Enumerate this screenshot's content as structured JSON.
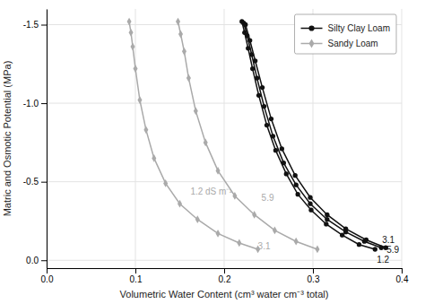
{
  "chart_data": {
    "type": "line",
    "xlabel": "Volumetric Water Content (cm³ water cm⁻³ total)",
    "ylabel": "Matric and Osmotic Potential (MPa)",
    "xlim": [
      0.0,
      0.4
    ],
    "ylim": [
      0.05,
      -1.6
    ],
    "xticks": [
      {
        "value": 0.0,
        "label": "0.0"
      },
      0.1,
      0.2,
      0.3,
      0.4
    ],
    "yticks": [
      -1.5,
      {
        "value": -1.0,
        "label": "-1.0"
      },
      -0.5,
      {
        "value": 0.0,
        "label": "0.0"
      }
    ],
    "grid": true,
    "legend": "upper right",
    "series": [
      {
        "name": "Silty Clay Loam",
        "color": "#111111",
        "marker": "circle",
        "line_style": "solid",
        "x": [
          0.22,
          0.223,
          0.227,
          0.232,
          0.239,
          0.248,
          0.258,
          0.27,
          0.283,
          0.298,
          0.315,
          0.333,
          0.352,
          0.37
        ],
        "values": [
          -1.52,
          -1.45,
          -1.35,
          -1.22,
          -1.05,
          -0.86,
          -0.7,
          -0.55,
          -0.42,
          -0.32,
          -0.23,
          -0.16,
          -0.1,
          -0.07
        ]
      },
      {
        "color": "#111111",
        "marker": "circle",
        "line_style": "solid",
        "x": [
          0.222,
          0.226,
          0.231,
          0.237,
          0.245,
          0.255,
          0.267,
          0.281,
          0.297,
          0.316,
          0.337,
          0.358,
          0.377
        ],
        "values": [
          -1.51,
          -1.43,
          -1.31,
          -1.16,
          -0.98,
          -0.79,
          -0.62,
          -0.48,
          -0.36,
          -0.26,
          -0.18,
          -0.12,
          -0.08
        ]
      },
      {
        "color": "#111111",
        "marker": "circle",
        "line_style": "solid",
        "x": [
          0.224,
          0.229,
          0.235,
          0.243,
          0.253,
          0.265,
          0.28,
          0.297,
          0.316,
          0.337,
          0.36,
          0.382
        ],
        "values": [
          -1.5,
          -1.4,
          -1.27,
          -1.1,
          -0.9,
          -0.71,
          -0.54,
          -0.4,
          -0.29,
          -0.2,
          -0.13,
          -0.08
        ]
      },
      {
        "name": "Sandy Loam",
        "color": "#aaaaaa",
        "marker": "diamond",
        "line_style": "solid",
        "x": [
          0.093,
          0.095,
          0.097,
          0.1,
          0.105,
          0.112,
          0.121,
          0.134,
          0.15,
          0.17,
          0.193,
          0.217,
          0.238
        ],
        "values": [
          -1.52,
          -1.45,
          -1.36,
          -1.22,
          -1.02,
          -0.83,
          -0.65,
          -0.49,
          -0.36,
          -0.26,
          -0.17,
          -0.11,
          -0.07
        ]
      },
      {
        "color": "#aaaaaa",
        "marker": "diamond",
        "line_style": "solid",
        "x": [
          0.148,
          0.151,
          0.155,
          0.16,
          0.168,
          0.179,
          0.193,
          0.212,
          0.234,
          0.257,
          0.281,
          0.305
        ],
        "values": [
          -1.52,
          -1.44,
          -1.33,
          -1.16,
          -0.95,
          -0.75,
          -0.57,
          -0.41,
          -0.29,
          -0.19,
          -0.12,
          -0.07
        ]
      }
    ],
    "annotations": [
      {
        "text": "5.9",
        "x": 0.383,
        "y": -0.1,
        "color": "#111111"
      },
      {
        "text": "3.1",
        "x": 0.378,
        "y": -0.13,
        "color": "#111111"
      },
      {
        "text": "1.2",
        "x": 0.372,
        "y": -0.09,
        "color": "#111111"
      },
      {
        "text": "5.9",
        "x": 0.242,
        "y": -0.4,
        "color": "#aaaaaa"
      },
      {
        "text": "3.1",
        "x": 0.238,
        "y": -0.09,
        "color": "#aaaaaa"
      },
      {
        "text": "1.2 dS m⁻¹",
        "x": 0.162,
        "y": -0.44,
        "color": "#aaaaaa"
      }
    ]
  }
}
